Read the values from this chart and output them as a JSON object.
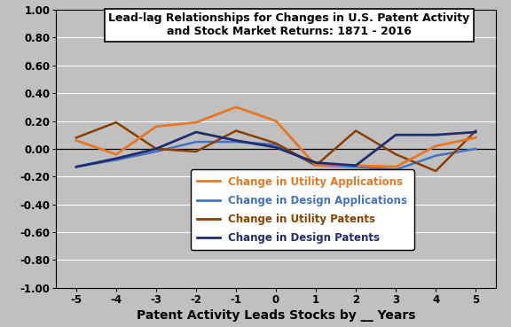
{
  "x": [
    -5,
    -4,
    -3,
    -2,
    -1,
    0,
    1,
    2,
    3,
    4,
    5
  ],
  "utility_applications": [
    0.06,
    -0.04,
    0.16,
    0.19,
    0.3,
    0.2,
    -0.12,
    -0.12,
    -0.13,
    0.02,
    0.08
  ],
  "design_applications": [
    -0.13,
    -0.08,
    -0.02,
    0.05,
    0.05,
    0.03,
    -0.12,
    -0.13,
    -0.15,
    -0.05,
    0.0
  ],
  "utility_patents": [
    0.08,
    0.19,
    0.0,
    -0.02,
    0.13,
    0.04,
    -0.12,
    0.13,
    -0.04,
    -0.16,
    0.13
  ],
  "design_patents": [
    -0.13,
    -0.07,
    0.0,
    0.12,
    0.06,
    0.01,
    -0.1,
    -0.12,
    0.1,
    0.1,
    0.12
  ],
  "utility_applications_color": "#E87722",
  "design_applications_color": "#4472C4",
  "utility_patents_color": "#8B4000",
  "design_patents_color": "#1F2D6E",
  "title_line1": "Lead-lag Relationships for Changes in U.S. Patent Activity",
  "title_line2": "and Stock Market Returns: 1871 - 2016",
  "xlabel": "Patent Activity Leads Stocks by __ Years",
  "ylim": [
    -1.0,
    1.0
  ],
  "ytick_vals": [
    -1.0,
    -0.8,
    -0.6,
    -0.4,
    -0.2,
    0.0,
    0.2,
    0.4,
    0.6,
    0.8,
    1.0
  ],
  "ytick_labels": [
    "-1.00",
    "-0.80",
    "-0.60",
    "-0.40",
    "-0.20",
    "0.00",
    "0.20",
    "0.40",
    "0.60",
    "0.80",
    "1.00"
  ],
  "background_color": "#C0C0C0",
  "grid_color": "#FFFFFF",
  "legend_labels": [
    "Change in Utility Applications",
    "Change in Design Applications",
    "Change in Utility Patents",
    "Change in Design Patents"
  ],
  "legend_colors": [
    "#E87722",
    "#4472C4",
    "#8B4000",
    "#1F2D6E"
  ],
  "legend_text_colors": [
    "#E87722",
    "#4472C4",
    "#8B4000",
    "#1F2D6E"
  ]
}
